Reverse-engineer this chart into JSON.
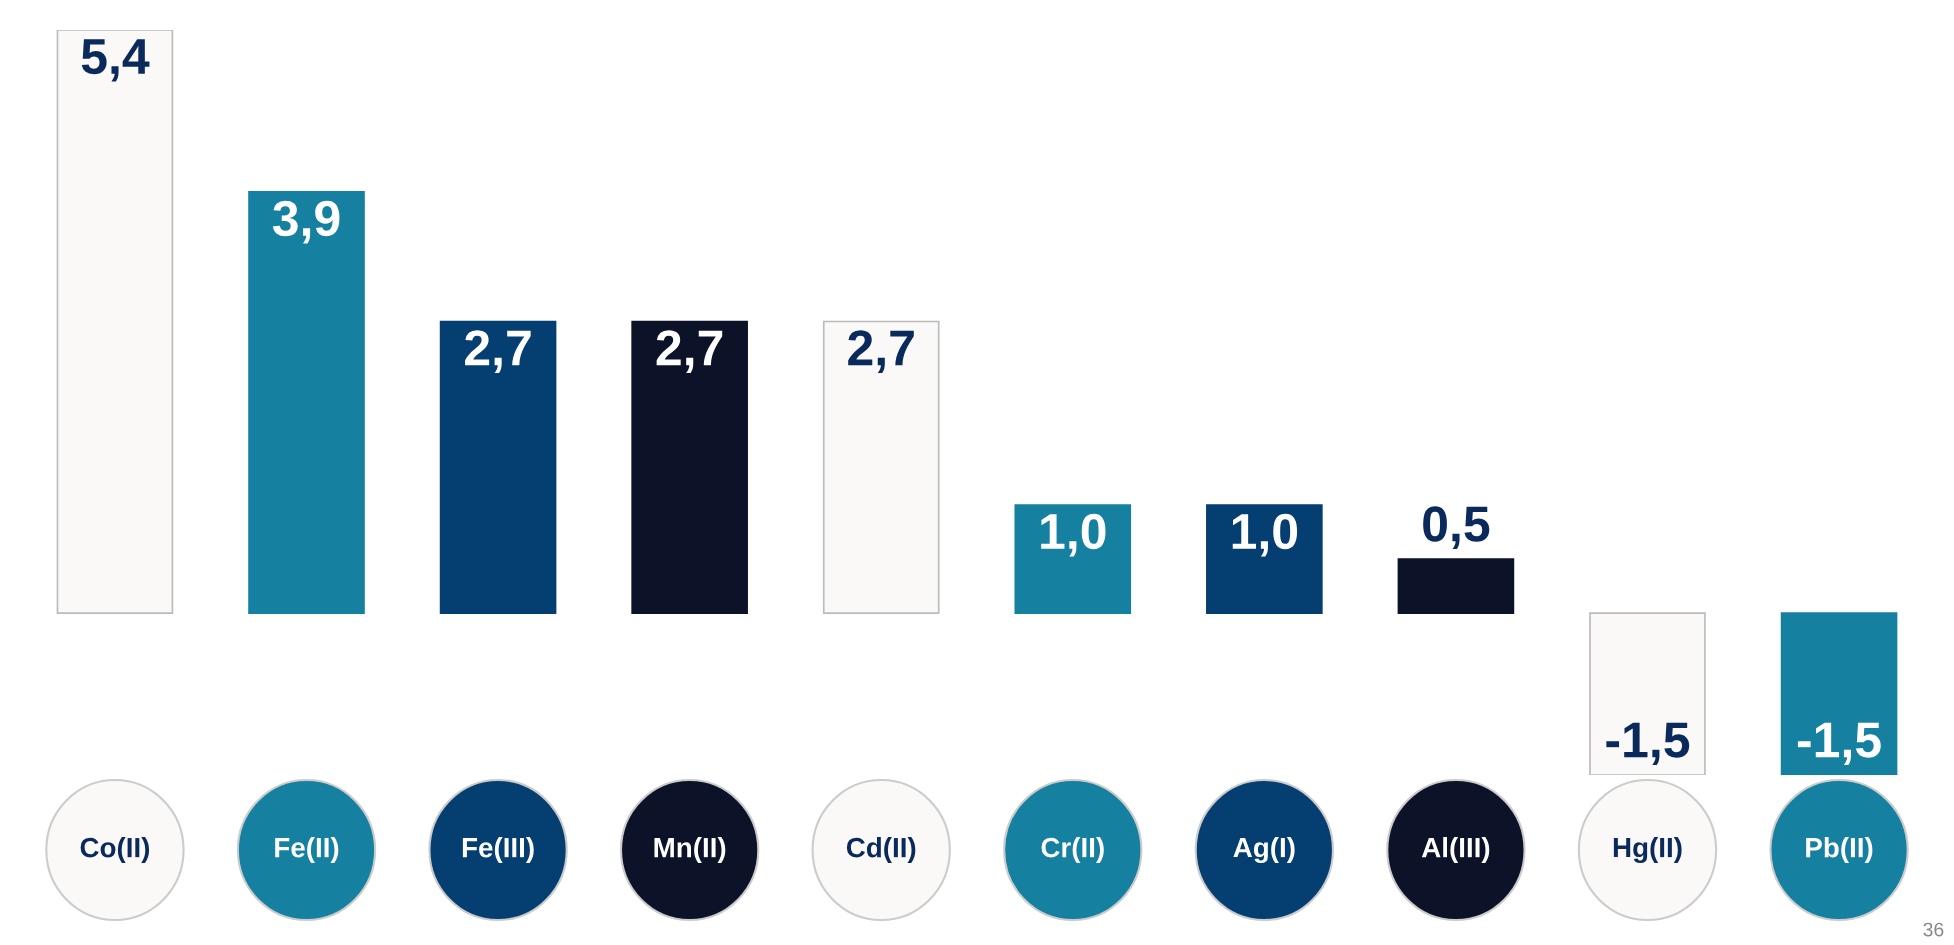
{
  "chart_data": {
    "type": "bar",
    "categories": [
      "Co(II)",
      "Fe(II)",
      "Fe(III)",
      "Mn(II)",
      "Cd(II)",
      "Cr(II)",
      "Ag(I)",
      "Al(III)",
      "Hg(II)",
      "Pb(II)"
    ],
    "values": [
      5.4,
      3.9,
      2.7,
      2.7,
      2.7,
      1.0,
      1.0,
      0.5,
      -1.5,
      -1.5
    ],
    "value_labels": [
      "5,4",
      "3,9",
      "2,7",
      "2,7",
      "2,7",
      "1,0",
      "1,0",
      "0,5",
      "-1,5",
      "-1,5"
    ],
    "colors": [
      "#faf9f7",
      "#1580a0",
      "#053e70",
      "#0c1228",
      "#faf9f7",
      "#1580a0",
      "#053e70",
      "#0c1228",
      "#faf9f7",
      "#1580a0"
    ],
    "annotations": [
      "36"
    ]
  }
}
